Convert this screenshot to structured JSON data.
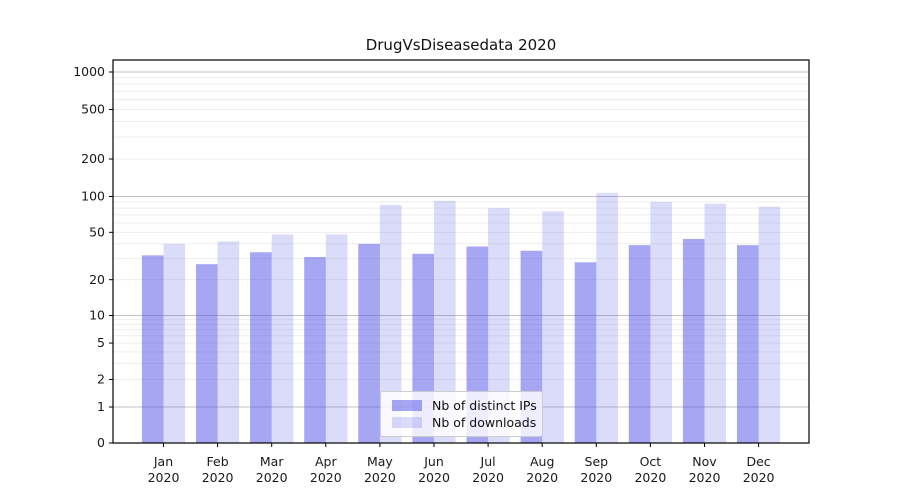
{
  "chart_data": {
    "type": "bar",
    "title": "DrugVsDiseasedata 2020",
    "categories": [
      "Jan 2020",
      "Feb 2020",
      "Mar 2020",
      "Apr 2020",
      "May 2020",
      "Jun 2020",
      "Jul 2020",
      "Aug 2020",
      "Sep 2020",
      "Oct 2020",
      "Nov 2020",
      "Dec 2020"
    ],
    "series": [
      {
        "name": "Nb of distinct IPs",
        "values": [
          32,
          27,
          34,
          31,
          40,
          33,
          38,
          35,
          28,
          39,
          44,
          39
        ]
      },
      {
        "name": "Nb of downloads",
        "values": [
          40,
          42,
          48,
          48,
          85,
          92,
          80,
          75,
          107,
          90,
          87,
          82
        ]
      }
    ],
    "xlabel": "",
    "ylabel": "",
    "yscale": "log-with-zero-baseline",
    "ylim": [
      0,
      1000
    ],
    "ytick_labels": [
      "1000",
      "500",
      "200",
      "100",
      "50",
      "20",
      "10",
      "5",
      "2",
      "1",
      "0"
    ],
    "grid": true,
    "legend_position": "lower center"
  },
  "legend": {
    "items": [
      {
        "label": "Nb of distinct IPs",
        "series_key": "distinct_ips"
      },
      {
        "label": "Nb of downloads",
        "series_key": "downloads"
      }
    ]
  },
  "colors": {
    "bar_rgb": "77,77,229",
    "alpha_distinct_ips": 0.5,
    "alpha_downloads": 0.2,
    "grid_major": "#c3c3c3",
    "grid_minor": "#ebebeb",
    "axis": "#000000",
    "tick_text": "#1a1a1a",
    "legend_border": "#cccccc",
    "background": "#ffffff"
  }
}
